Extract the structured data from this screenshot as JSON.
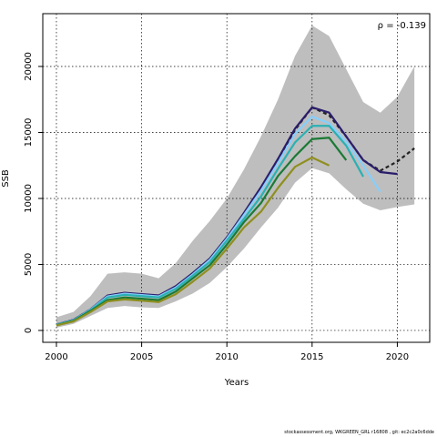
{
  "chart_data": {
    "type": "line",
    "xlabel": "Years",
    "ylabel": "SSB",
    "xlim": [
      1999.2,
      2021.9
    ],
    "ylim": [
      -900,
      24000
    ],
    "x_ticks": [
      2000,
      2005,
      2010,
      2015,
      2020
    ],
    "y_ticks": [
      0,
      5000,
      10000,
      15000,
      20000
    ],
    "grid": true,
    "annotation": "ρ = -0.139",
    "confidence_band": {
      "x": [
        2000,
        2001,
        2002,
        2003,
        2004,
        2005,
        2006,
        2007,
        2008,
        2009,
        2010,
        2011,
        2012,
        2013,
        2014,
        2015,
        2016,
        2017,
        2018,
        2019,
        2020,
        2021
      ],
      "upper": [
        1000,
        1400,
        2600,
        4300,
        4400,
        4300,
        3950,
        5100,
        6800,
        8300,
        10000,
        12200,
        14700,
        17500,
        20800,
        23100,
        22300,
        19800,
        17300,
        16500,
        17700,
        20000
      ],
      "lower": [
        200,
        500,
        1100,
        1700,
        1850,
        1750,
        1700,
        2200,
        2800,
        3600,
        4800,
        6200,
        7800,
        9300,
        11200,
        12300,
        11900,
        10700,
        9600,
        9100,
        9350,
        9550
      ]
    },
    "series": [
      {
        "color": "#2b1d6b",
        "dashed": true,
        "x": [
          2000,
          2001,
          2002,
          2003,
          2004,
          2005,
          2006,
          2007,
          2008,
          2009,
          2010,
          2011,
          2012,
          2013,
          2014,
          2015,
          2016,
          2017,
          2018,
          2019,
          2020,
          2021
        ],
        "values": [
          450,
          800,
          1600,
          2600,
          2800,
          2700,
          2600,
          3300,
          4300,
          5400,
          7000,
          8800,
          10700,
          12800,
          15200,
          16900,
          16300,
          14700,
          12900,
          12100,
          12800,
          13800
        ]
      },
      {
        "color": "#2b1d6b",
        "x": [
          2000,
          2001,
          2002,
          2003,
          2004,
          2005,
          2006,
          2007,
          2008,
          2009,
          2010,
          2011,
          2012,
          2013,
          2014,
          2015,
          2016,
          2017,
          2018,
          2019,
          2020
        ],
        "values": [
          450,
          800,
          1600,
          2650,
          2850,
          2750,
          2650,
          3350,
          4350,
          5450,
          7050,
          8900,
          10850,
          13000,
          15300,
          16900,
          16500,
          14700,
          12900,
          12000,
          11850
        ]
      },
      {
        "color": "#87cefa",
        "x": [
          2000,
          2001,
          2002,
          2003,
          2004,
          2005,
          2006,
          2007,
          2008,
          2009,
          2010,
          2011,
          2012,
          2013,
          2014,
          2015,
          2016,
          2017,
          2018,
          2019
        ],
        "values": [
          440,
          780,
          1580,
          2580,
          2780,
          2680,
          2580,
          3250,
          4250,
          5350,
          6950,
          8750,
          10600,
          12700,
          14900,
          16200,
          15700,
          14300,
          12500,
          10500
        ]
      },
      {
        "color": "#2ab1b4",
        "x": [
          2000,
          2001,
          2002,
          2003,
          2004,
          2005,
          2006,
          2007,
          2008,
          2009,
          2010,
          2011,
          2012,
          2013,
          2014,
          2015,
          2016,
          2017,
          2018
        ],
        "values": [
          420,
          760,
          1540,
          2500,
          2700,
          2600,
          2500,
          3150,
          4150,
          5200,
          6800,
          8450,
          10150,
          12250,
          14250,
          15500,
          15500,
          14000,
          11650
        ]
      },
      {
        "color": "#1a7a35",
        "x": [
          2000,
          2001,
          2002,
          2003,
          2004,
          2005,
          2006,
          2007,
          2008,
          2009,
          2010,
          2011,
          2012,
          2013,
          2014,
          2015,
          2016,
          2017
        ],
        "values": [
          400,
          720,
          1480,
          2300,
          2500,
          2400,
          2300,
          2950,
          3950,
          4950,
          6500,
          8200,
          9650,
          11700,
          13200,
          14500,
          14600,
          12900
        ]
      },
      {
        "color": "#8f8f1f",
        "x": [
          2000,
          2001,
          2002,
          2003,
          2004,
          2005,
          2006,
          2007,
          2008,
          2009,
          2010,
          2011,
          2012,
          2013,
          2014,
          2015,
          2016
        ],
        "values": [
          380,
          680,
          1400,
          2200,
          2350,
          2250,
          2150,
          2750,
          3700,
          4700,
          6200,
          7800,
          9000,
          10800,
          12400,
          13100,
          12500
        ]
      }
    ]
  },
  "footer": "stockassessment.org, WKGREEN_GRL r16808 , git: ec2c2a0c6dde"
}
